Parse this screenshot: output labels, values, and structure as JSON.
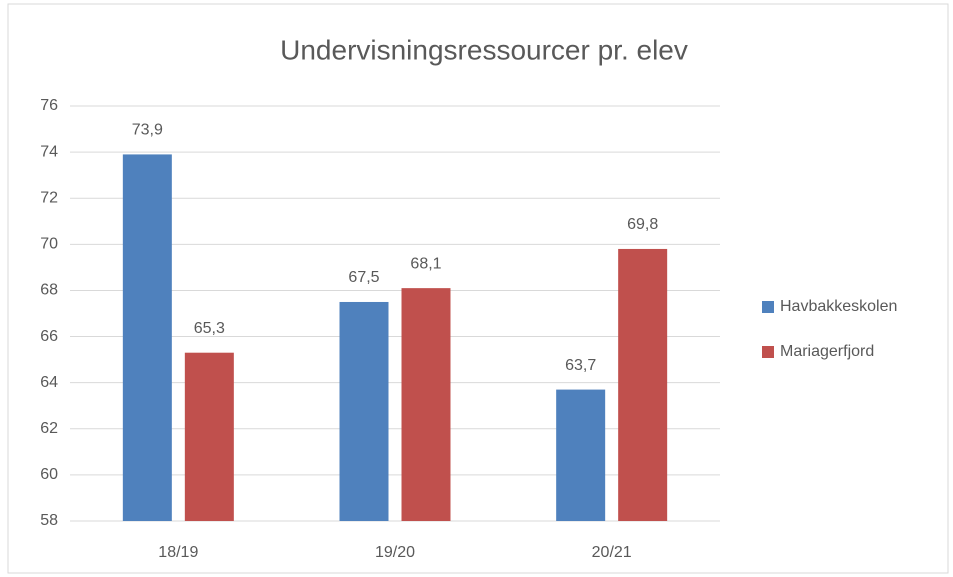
{
  "chart_data": {
    "type": "bar",
    "title": "Undervisningsressourcer pr. elev",
    "categories": [
      "18/19",
      "19/20",
      "20/21"
    ],
    "series": [
      {
        "name": "Havbakkeskolen",
        "color": "#4f81bd",
        "values": [
          73.9,
          67.5,
          63.7
        ],
        "value_labels": [
          "73,9",
          "67,5",
          "63,7"
        ]
      },
      {
        "name": "Mariagerfjord",
        "color": "#c0504d",
        "values": [
          65.3,
          68.1,
          69.8
        ],
        "value_labels": [
          "65,3",
          "68,1",
          "69,8"
        ]
      }
    ],
    "ylim": [
      58,
      76
    ],
    "yticks": [
      58,
      60,
      62,
      64,
      66,
      68,
      70,
      72,
      74,
      76
    ],
    "grid": true,
    "legend": "right"
  }
}
